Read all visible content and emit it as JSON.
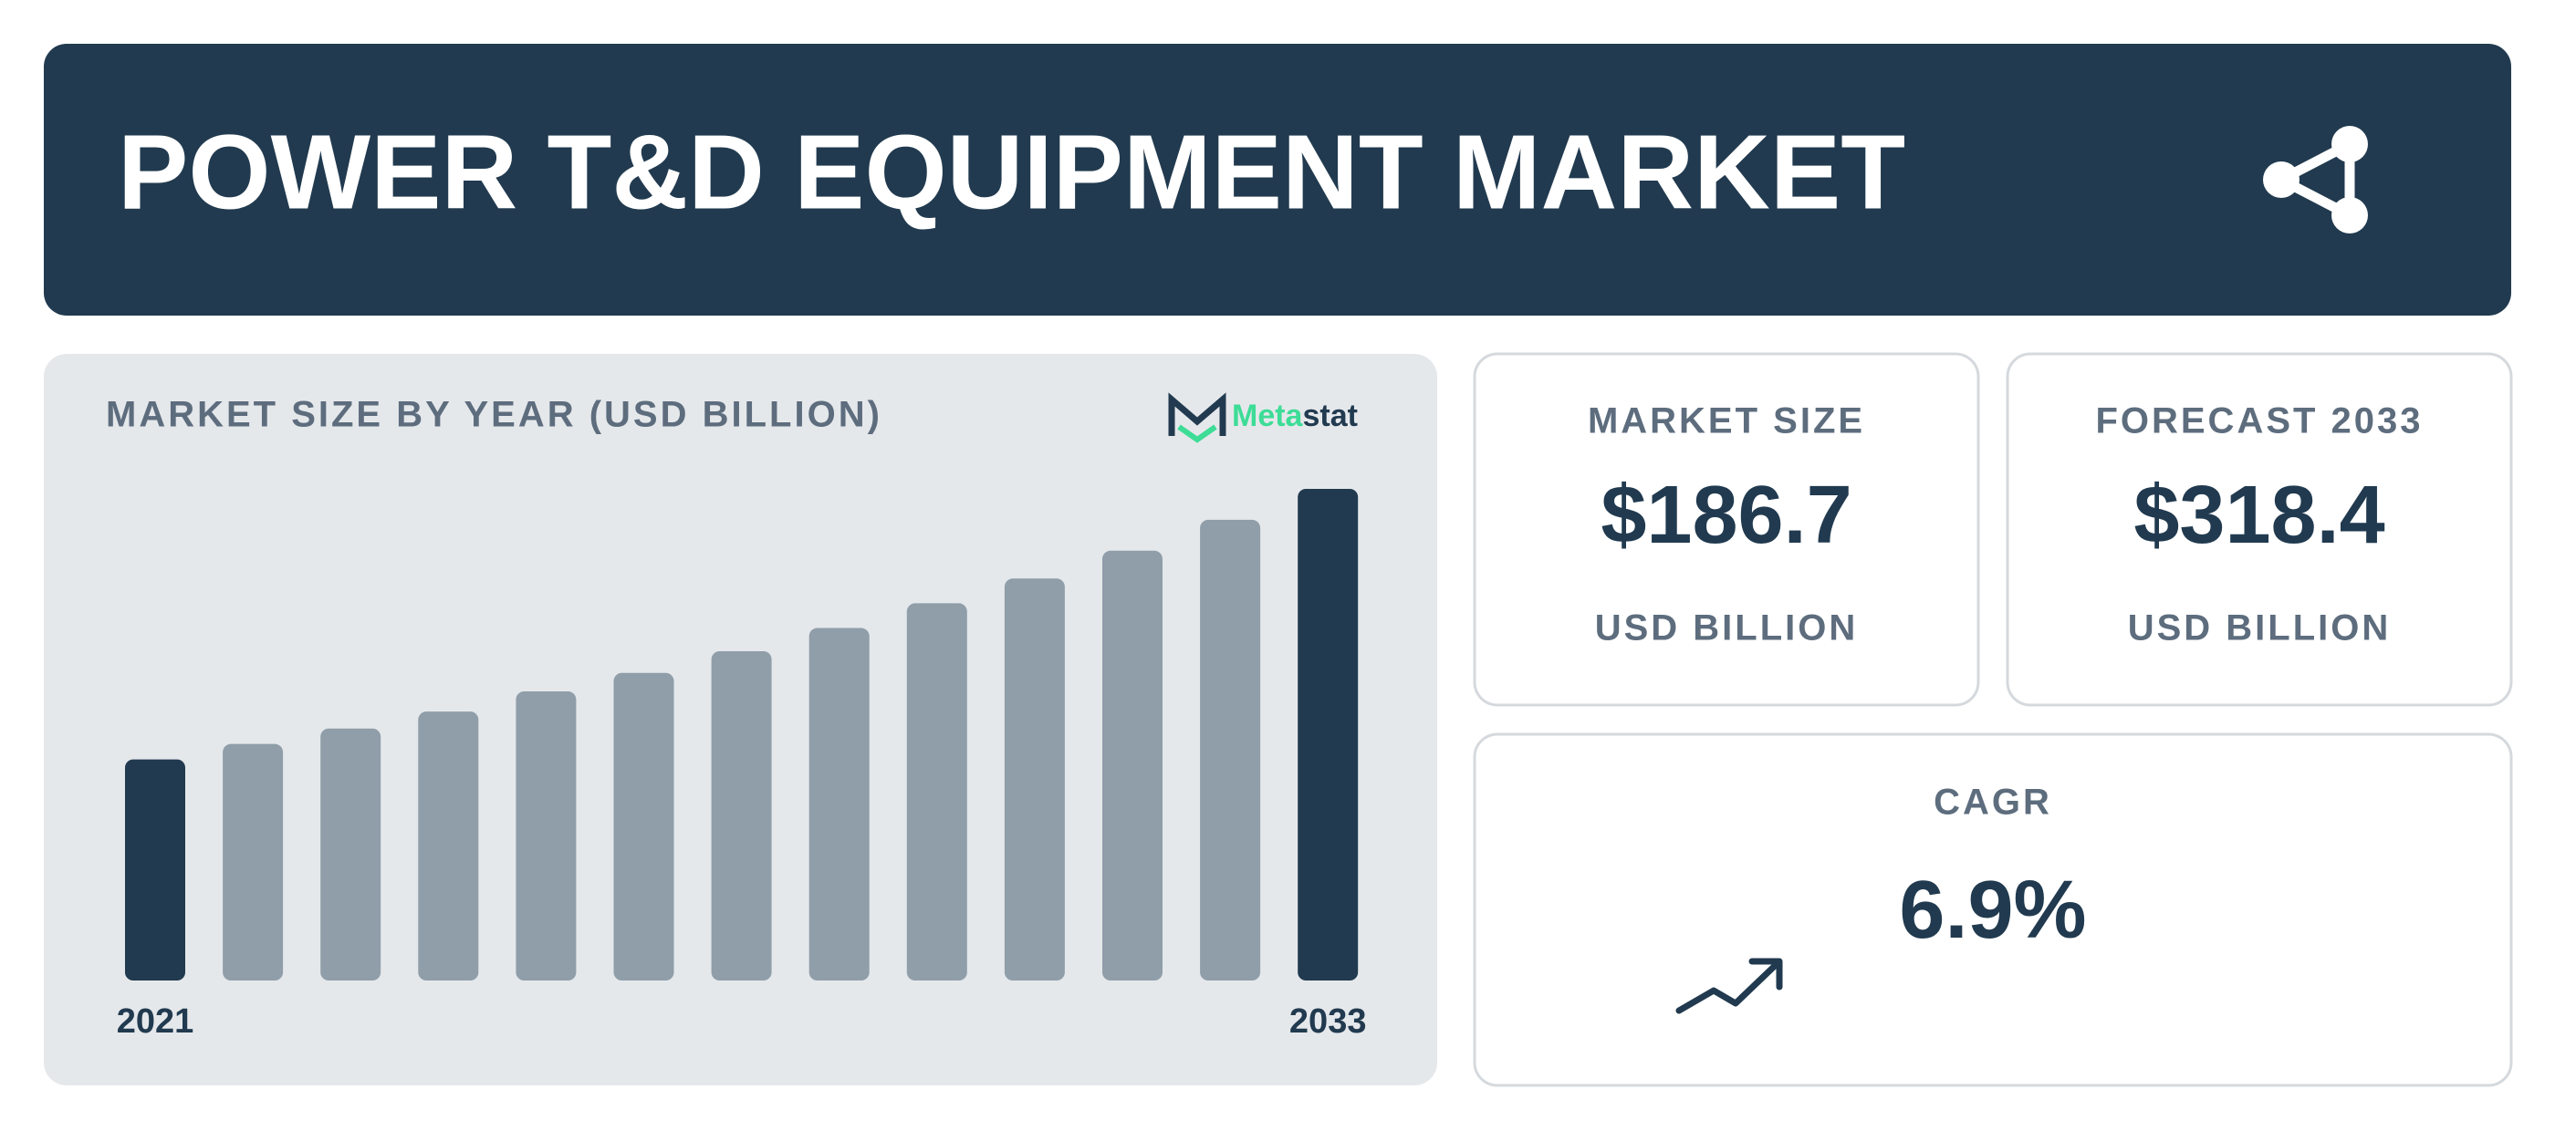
{
  "header": {
    "title": "POWER T&D EQUIPMENT MARKET"
  },
  "chart_data": {
    "type": "bar",
    "title": "MARKET SIZE BY YEAR (USD BILLION)",
    "categories": [
      "2021",
      null,
      null,
      null,
      null,
      null,
      null,
      null,
      null,
      null,
      null,
      null,
      "2033"
    ],
    "values": [
      143,
      153,
      163,
      174,
      187,
      199,
      213,
      228,
      244,
      260,
      278,
      298,
      318
    ],
    "colors": [
      "#213a4f",
      "#8f9ea9",
      "#8f9ea9",
      "#8f9ea9",
      "#8f9ea9",
      "#8f9ea9",
      "#8f9ea9",
      "#8f9ea9",
      "#8f9ea9",
      "#8f9ea9",
      "#8f9ea9",
      "#8f9ea9",
      "#213a4f"
    ]
  },
  "logo": {
    "part1": "Meta",
    "part2": "stat"
  },
  "cards": [
    {
      "label": "MARKET SIZE",
      "value": "$186.7",
      "unit": "USD BILLION"
    },
    {
      "label": "FORECAST 2033",
      "value": "$318.4",
      "unit": "USD BILLION"
    },
    {
      "label": "CAGR",
      "value": "6.9%"
    }
  ]
}
